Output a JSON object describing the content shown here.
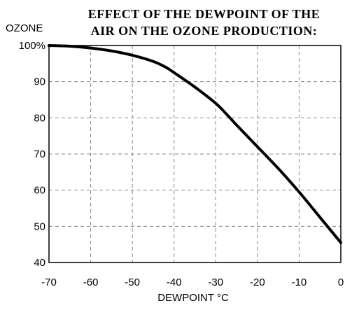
{
  "chart_data": {
    "type": "line",
    "title_lines": [
      "EFFECT OF THE DEWPOINT OF THE",
      "AIR ON THE OZONE PRODUCTION:"
    ],
    "xlabel": "DEWPOINT °C",
    "ylabel": "OZONE",
    "xlim": [
      -70,
      0
    ],
    "ylim": [
      40,
      100
    ],
    "x_ticks": [
      -70,
      -60,
      -50,
      -40,
      -30,
      -20,
      -10,
      0
    ],
    "y_ticks": [
      40,
      50,
      60,
      70,
      80,
      90,
      100
    ],
    "y_tick_labels": [
      "40",
      "50",
      "60",
      "70",
      "80",
      "90",
      "100%"
    ],
    "grid": true,
    "series": [
      {
        "x": [
          -70,
          -65,
          -60,
          -55,
          -50,
          -45,
          -42,
          -40,
          -35,
          -30,
          -27,
          -25,
          -20,
          -15,
          -10,
          -5,
          0
        ],
        "y": [
          100,
          99.8,
          99.3,
          98.5,
          97.3,
          95.6,
          94,
          92.5,
          88.5,
          84,
          80.5,
          78,
          72,
          66,
          59.5,
          52.5,
          45.5
        ]
      }
    ]
  }
}
